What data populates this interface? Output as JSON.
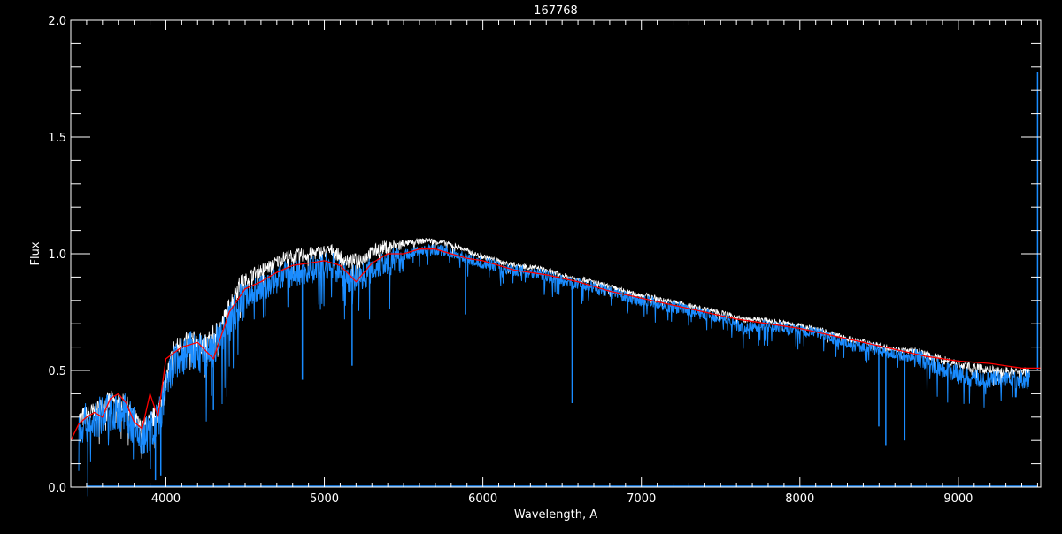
{
  "chart_data": {
    "type": "line",
    "title": "167768",
    "xlabel": "Wavelength, A",
    "ylabel": "Flux",
    "xlim": [
      3400,
      9520
    ],
    "ylim": [
      0,
      2.0
    ],
    "x_ticks": [
      "4000",
      "5000",
      "6000",
      "7000",
      "8000",
      "9000"
    ],
    "y_ticks": [
      "0.0",
      "0.5",
      "1.0",
      "1.5",
      "2.0"
    ],
    "grid": false,
    "background": "#000000",
    "series": [
      {
        "color": "#ffffff",
        "x": [
          3450,
          3550,
          3650,
          3750,
          3850,
          3950,
          4050,
          4150,
          4250,
          4350,
          4450,
          4550,
          4650,
          4750,
          4850,
          4950,
          5050,
          5150,
          5250,
          5350,
          5450,
          5550,
          5650,
          5750,
          5850,
          5950,
          6050,
          6150,
          6250,
          6350,
          6450,
          6550,
          6650,
          6750,
          6850,
          6950,
          7050,
          7150,
          7250,
          7350,
          7450,
          7550,
          7650,
          7750,
          7850,
          7950,
          8050,
          8150,
          8250,
          8350,
          8450,
          8550,
          8650,
          8750,
          8850,
          8950,
          9050,
          9150,
          9250,
          9350,
          9450
        ],
        "values": [
          0.3,
          0.33,
          0.38,
          0.36,
          0.25,
          0.33,
          0.6,
          0.64,
          0.62,
          0.7,
          0.86,
          0.92,
          0.95,
          0.99,
          1.0,
          1.01,
          1.02,
          0.97,
          0.99,
          1.03,
          1.04,
          1.05,
          1.06,
          1.05,
          1.03,
          1.0,
          0.98,
          0.96,
          0.95,
          0.94,
          0.92,
          0.9,
          0.89,
          0.87,
          0.85,
          0.83,
          0.82,
          0.8,
          0.79,
          0.77,
          0.76,
          0.74,
          0.72,
          0.72,
          0.71,
          0.7,
          0.69,
          0.67,
          0.65,
          0.63,
          0.62,
          0.6,
          0.59,
          0.58,
          0.56,
          0.54,
          0.52,
          0.51,
          0.5,
          0.5,
          0.5
        ]
      },
      {
        "color": "#1a8cff",
        "x": [
          3450,
          3550,
          3650,
          3750,
          3850,
          3950,
          4050,
          4150,
          4250,
          4350,
          4450,
          4550,
          4650,
          4750,
          4850,
          4950,
          5050,
          5150,
          5250,
          5350,
          5450,
          5550,
          5650,
          5750,
          5850,
          5950,
          6050,
          6150,
          6250,
          6350,
          6450,
          6550,
          6650,
          6750,
          6850,
          6950,
          7050,
          7150,
          7250,
          7350,
          7450,
          7550,
          7650,
          7750,
          7850,
          7950,
          8050,
          8150,
          8250,
          8350,
          8450,
          8550,
          8650,
          8750,
          8850,
          8950,
          9050,
          9150,
          9250,
          9350,
          9450
        ],
        "values": [
          0.28,
          0.3,
          0.35,
          0.33,
          0.22,
          0.3,
          0.55,
          0.6,
          0.58,
          0.65,
          0.8,
          0.85,
          0.88,
          0.92,
          0.93,
          0.95,
          0.96,
          0.9,
          0.92,
          0.97,
          0.98,
          1.01,
          1.02,
          1.02,
          1.0,
          0.97,
          0.96,
          0.94,
          0.93,
          0.92,
          0.9,
          0.88,
          0.87,
          0.85,
          0.83,
          0.81,
          0.8,
          0.78,
          0.77,
          0.75,
          0.74,
          0.72,
          0.68,
          0.7,
          0.69,
          0.68,
          0.67,
          0.66,
          0.63,
          0.61,
          0.6,
          0.58,
          0.57,
          0.56,
          0.53,
          0.5,
          0.48,
          0.47,
          0.47,
          0.47,
          0.47
        ],
        "absorption_lines": [
          {
            "x": 3934,
            "y": 0.03
          },
          {
            "x": 3968,
            "y": 0.05
          },
          {
            "x": 4300,
            "y": 0.33
          },
          {
            "x": 4861,
            "y": 0.46
          },
          {
            "x": 5175,
            "y": 0.52
          },
          {
            "x": 5890,
            "y": 0.74
          },
          {
            "x": 6563,
            "y": 0.36
          },
          {
            "x": 8498,
            "y": 0.26
          },
          {
            "x": 8542,
            "y": 0.18
          },
          {
            "x": 8662,
            "y": 0.2
          }
        ],
        "spike": {
          "x": 9500,
          "y": 1.78
        }
      },
      {
        "color": "#ff0000",
        "x": [
          3400,
          3450,
          3500,
          3550,
          3600,
          3650,
          3700,
          3750,
          3800,
          3850,
          3900,
          3950,
          4000,
          4100,
          4200,
          4300,
          4400,
          4500,
          4600,
          4700,
          4800,
          4900,
          5000,
          5100,
          5200,
          5300,
          5400,
          5500,
          5600,
          5700,
          5800,
          5900,
          6000,
          6200,
          6400,
          6600,
          6800,
          7000,
          7200,
          7400,
          7600,
          7800,
          8000,
          8200,
          8400,
          8600,
          8800,
          9000,
          9200,
          9400,
          9520
        ],
        "values": [
          0.2,
          0.27,
          0.3,
          0.32,
          0.3,
          0.38,
          0.4,
          0.36,
          0.28,
          0.25,
          0.4,
          0.3,
          0.55,
          0.6,
          0.62,
          0.55,
          0.75,
          0.85,
          0.88,
          0.92,
          0.95,
          0.96,
          0.97,
          0.95,
          0.88,
          0.96,
          1.0,
          1.0,
          1.02,
          1.02,
          1.0,
          0.98,
          0.97,
          0.93,
          0.91,
          0.88,
          0.84,
          0.81,
          0.78,
          0.75,
          0.72,
          0.7,
          0.68,
          0.65,
          0.62,
          0.59,
          0.56,
          0.54,
          0.53,
          0.51,
          0.51
        ]
      }
    ]
  }
}
